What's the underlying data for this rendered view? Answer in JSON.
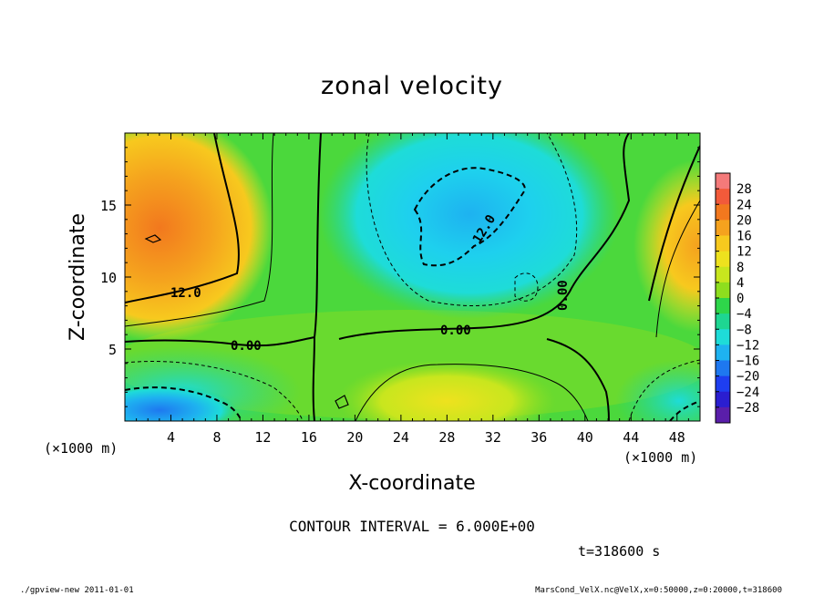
{
  "chart_data": {
    "type": "heatmap",
    "title": "zonal velocity",
    "xlabel": "X-coordinate",
    "ylabel": "Z-coordinate",
    "x_unit_note": "(×1000 m)",
    "z_unit_note": "(×1000 m)",
    "x_range": [
      0,
      50
    ],
    "z_range": [
      0,
      20
    ],
    "x_ticks": [
      4,
      8,
      12,
      16,
      20,
      24,
      28,
      32,
      36,
      40,
      44,
      48
    ],
    "z_ticks": [
      5,
      10,
      15
    ],
    "colorbar": {
      "labels": [
        28,
        24,
        20,
        16,
        12,
        8,
        4,
        0,
        -4,
        -8,
        -12,
        -16,
        -20,
        -24,
        -28
      ],
      "label_text": [
        "28",
        "24",
        "20",
        "16",
        "12",
        "8",
        "4",
        "0",
        "−4",
        "−8",
        "−12",
        "−16",
        "−20",
        "−24",
        "−28"
      ],
      "colors": [
        "#f47a7a",
        "#f25a3a",
        "#f2781e",
        "#f5a21e",
        "#f7c91e",
        "#eee21e",
        "#c8e61e",
        "#8ede1e",
        "#2ed64a",
        "#1ed692",
        "#1edcd8",
        "#1eb2f0",
        "#1e78f0",
        "#1e3ef0",
        "#2a1ed0",
        "#5a1eaa"
      ]
    },
    "contour_labels": [
      {
        "text": "12.0"
      },
      {
        "text": "0.00"
      },
      {
        "text": "0.00"
      },
      {
        "text": "12.0"
      },
      {
        "text": "0.00"
      }
    ],
    "contour_interval": "CONTOUR INTERVAL = 6.000E+00",
    "time_label": "t=318600 s"
  },
  "footer": {
    "left": "./gpview-new  2011-01-01",
    "right": "MarsCond_VelX.nc@VelX,x=0:50000,z=0:20000,t=318600"
  }
}
